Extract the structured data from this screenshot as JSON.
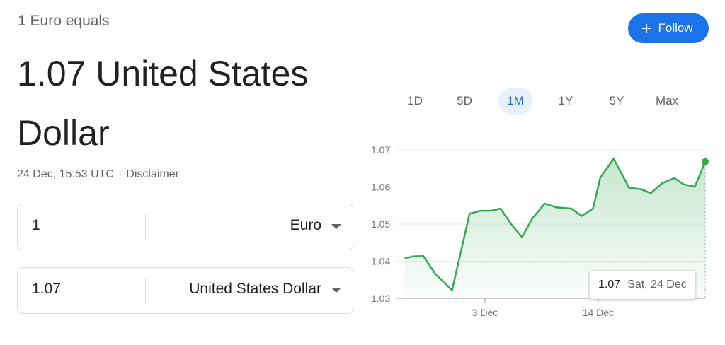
{
  "header": {
    "subtitle": "1 Euro equals",
    "headline": "1.07 United States Dollar",
    "timestamp": "24 Dec, 15:53 UTC",
    "separator": "·",
    "disclaimer": "Disclaimer",
    "follow_label": "Follow"
  },
  "converter": {
    "from": {
      "amount": "1",
      "currency": "Euro"
    },
    "to": {
      "amount": "1.07",
      "currency": "United States Dollar"
    }
  },
  "ranges": {
    "items": [
      "1D",
      "5D",
      "1M",
      "1Y",
      "5Y",
      "Max"
    ],
    "selected": "1M"
  },
  "tooltip": {
    "value": "1.07",
    "date": "Sat, 24 Dec"
  },
  "colors": {
    "line": "#34a853",
    "accent": "#1a73e8"
  },
  "chart_data": {
    "type": "area",
    "y_ticks": [
      "1.07",
      "1.06",
      "1.05",
      "1.04",
      "1.03"
    ],
    "ylim": [
      1.03,
      1.07
    ],
    "x_ticks": [
      {
        "label": "3 Dec",
        "day": 3
      },
      {
        "label": "14 Dec",
        "day": 14
      }
    ],
    "xlim": [
      -5.6,
      24.4
    ],
    "series": [
      {
        "x": [
          -4.8,
          -4.0,
          -3.0,
          -1.8,
          -0.2,
          1.5,
          2.6,
          3.6,
          4.5,
          5.6,
          6.6,
          7.6,
          8.8,
          10.0,
          11.4,
          12.4,
          13.5,
          14.2,
          15.5,
          17.0,
          18.2,
          19.1,
          20.2,
          21.4,
          22.3,
          23.4,
          24.4
        ],
        "y": [
          1.0408,
          1.0413,
          1.0414,
          1.0365,
          1.0322,
          1.0528,
          1.0536,
          1.0536,
          1.0542,
          1.0498,
          1.0465,
          1.0515,
          1.0555,
          1.0545,
          1.0542,
          1.0522,
          1.0542,
          1.0625,
          1.0676,
          1.0598,
          1.0594,
          1.0583,
          1.061,
          1.0624,
          1.0607,
          1.0601,
          1.0668
        ]
      }
    ],
    "end_value": 1.0668,
    "grid": true
  }
}
